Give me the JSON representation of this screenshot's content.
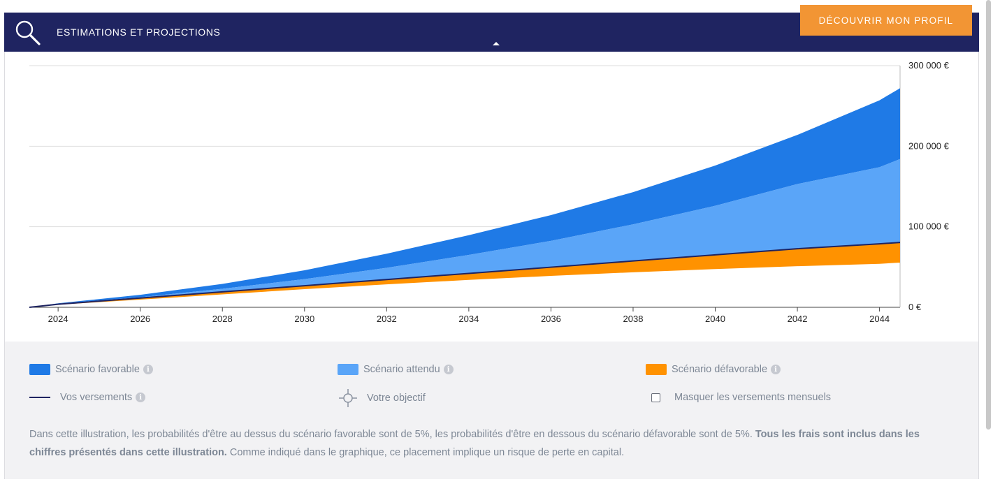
{
  "header": {
    "title": "ESTIMATIONS ET PROJECTIONS",
    "search_icon": "search-icon",
    "cta_label": "DÉCOUVRIR MON PROFIL"
  },
  "colors": {
    "header_bg": "#1f2461",
    "cta_bg": "#f29534",
    "favorable": "#1f7ae6",
    "expected": "#5aa5f8",
    "unfavorable": "#ff9200",
    "payments_line": "#1f2461"
  },
  "chart_data": {
    "type": "area",
    "x": [
      2023.3,
      2024,
      2026,
      2028,
      2030,
      2032,
      2034,
      2036,
      2038,
      2040,
      2042,
      2044,
      2044.5
    ],
    "series": [
      {
        "name": "Scénario favorable",
        "values": [
          0,
          5000,
          15500,
          29000,
          46000,
          66500,
          89500,
          114500,
          143000,
          176000,
          214000,
          257000,
          272000
        ]
      },
      {
        "name": "Scénario attendu",
        "values": [
          0,
          4500,
          12500,
          23000,
          35000,
          49000,
          65000,
          82500,
          103000,
          126000,
          153000,
          174000,
          184000
        ]
      },
      {
        "name": "Vos versements",
        "values": [
          0,
          3800,
          11500,
          19200,
          26800,
          34500,
          42100,
          49800,
          57500,
          65100,
          72700,
          78800,
          80500
        ]
      },
      {
        "name": "Scénario défavorable",
        "values": [
          0,
          3300,
          9500,
          16000,
          22500,
          28500,
          34000,
          39000,
          43500,
          47500,
          51000,
          54000,
          55500
        ]
      }
    ],
    "xticks": [
      "2024",
      "2026",
      "2028",
      "2030",
      "2032",
      "2034",
      "2036",
      "2038",
      "2040",
      "2042",
      "2044"
    ],
    "yticks": [
      "0 €",
      "100 000 €",
      "200 000 €",
      "300 000 €"
    ],
    "ylim": [
      0,
      300000
    ],
    "grid": true
  },
  "legend": {
    "favorable": "Scénario favorable",
    "expected": "Scénario attendu",
    "unfavorable": "Scénario défavorable",
    "payments": "Vos versements",
    "target": "Votre objectif",
    "hide_monthly": "Masquer les versements mensuels",
    "info_glyph": "i"
  },
  "note": {
    "text1": "Dans cette illustration, les probabilités d'être au dessus du scénario favorable sont de 5%, les probabilités d'être en dessous du scénario défavorable sont de 5%. ",
    "bold": "Tous les frais sont inclus dans les chiffres présentés dans cette illustration.",
    "text2": " Comme indiqué dans le graphique, ce placement implique un risque de perte en capital."
  }
}
